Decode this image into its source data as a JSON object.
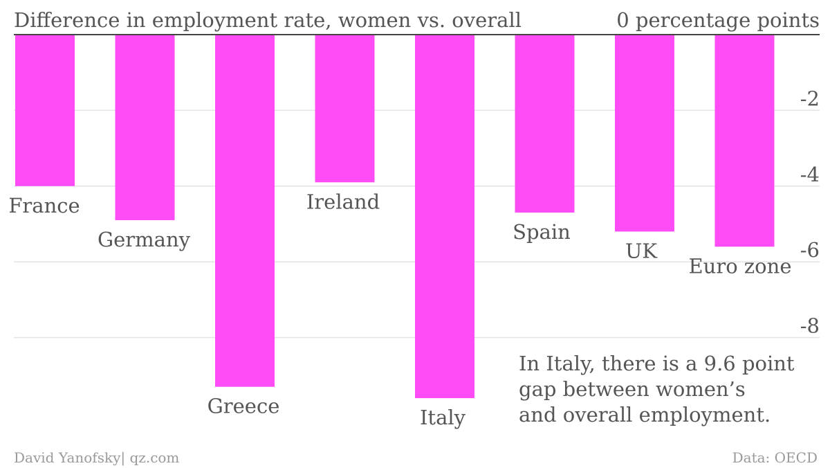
{
  "chart_data": {
    "type": "bar",
    "title": "Difference in employment rate, women vs. overall",
    "unit_label": "0 percentage points",
    "categories": [
      "France",
      "Germany",
      "Greece",
      "Ireland",
      "Italy",
      "Spain",
      "UK",
      "Euro zone"
    ],
    "values": [
      -4.0,
      -4.9,
      -9.3,
      -3.9,
      -9.6,
      -4.7,
      -5.2,
      -5.6
    ],
    "ylim": [
      -9.6,
      0
    ],
    "yticks": [
      {
        "value": -2,
        "label": "-2"
      },
      {
        "value": -4,
        "label": "-4"
      },
      {
        "value": -6,
        "label": "-6"
      },
      {
        "value": -8,
        "label": "-8"
      }
    ],
    "annotation": [
      "In Italy, there is a 9.6 point",
      "gap between women’s",
      "and overall employment."
    ],
    "bar_color": "#ff4cf7",
    "grid": true,
    "source_left": "David Yanofsky| qz.com",
    "source_right": "Data: OECD"
  }
}
